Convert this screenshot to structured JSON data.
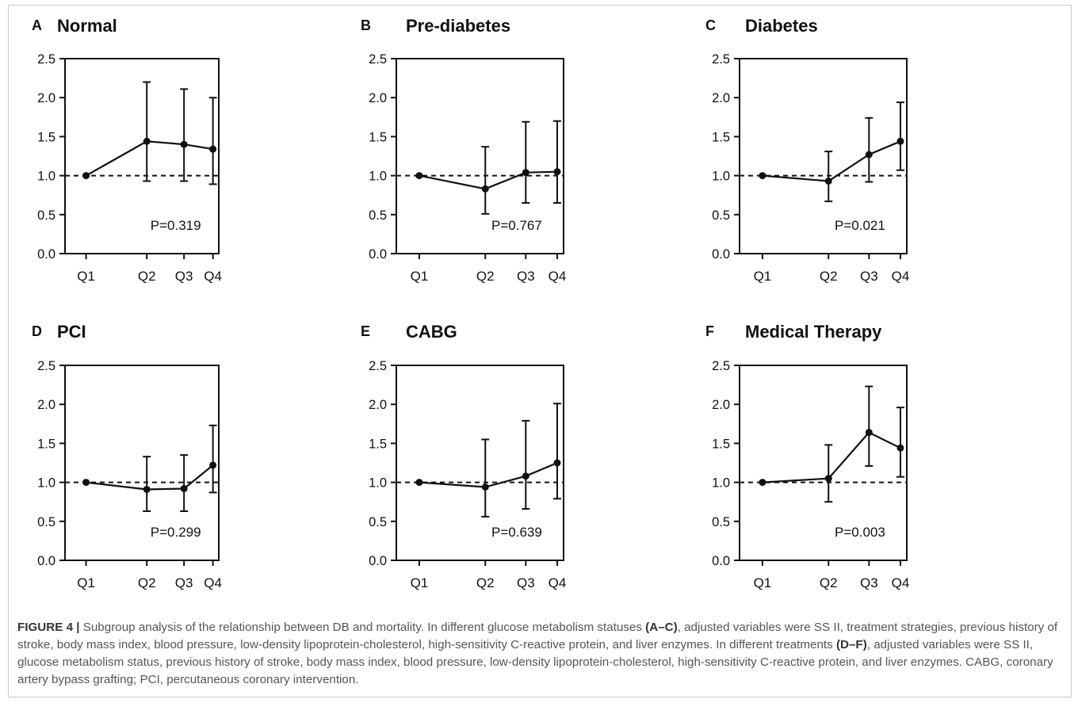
{
  "chart_data": [
    {
      "type": "line",
      "panel_letter": "A",
      "title": "Normal",
      "categories": [
        "Q1",
        "Q2",
        "Q3",
        "Q4"
      ],
      "values": [
        1.0,
        1.44,
        1.4,
        1.34
      ],
      "error_low": [
        1.0,
        0.93,
        0.93,
        0.89
      ],
      "error_high": [
        1.0,
        2.2,
        2.11,
        2.0
      ],
      "ylim": [
        0,
        2.5
      ],
      "yticks": [
        "0.0",
        "0.5",
        "1.0",
        "1.5",
        "2.0",
        "2.5"
      ],
      "reference_line": 1.0,
      "annotation": "P=0.319",
      "grid": false
    },
    {
      "type": "line",
      "panel_letter": "B",
      "title": "Pre-diabetes",
      "categories": [
        "Q1",
        "Q2",
        "Q3",
        "Q4"
      ],
      "values": [
        1.0,
        0.83,
        1.04,
        1.05
      ],
      "error_low": [
        1.0,
        0.51,
        0.65,
        0.65
      ],
      "error_high": [
        1.0,
        1.37,
        1.69,
        1.7
      ],
      "ylim": [
        0,
        2.5
      ],
      "yticks": [
        "0.0",
        "0.5",
        "1.0",
        "1.5",
        "2.0",
        "2.5"
      ],
      "reference_line": 1.0,
      "annotation": "P=0.767",
      "grid": false
    },
    {
      "type": "line",
      "panel_letter": "C",
      "title": "Diabetes",
      "categories": [
        "Q1",
        "Q2",
        "Q3",
        "Q4"
      ],
      "values": [
        1.0,
        0.93,
        1.27,
        1.44
      ],
      "error_low": [
        1.0,
        0.67,
        0.92,
        1.07
      ],
      "error_high": [
        1.0,
        1.31,
        1.74,
        1.94
      ],
      "ylim": [
        0,
        2.5
      ],
      "yticks": [
        "0.0",
        "0.5",
        "1.0",
        "1.5",
        "2.0",
        "2.5"
      ],
      "reference_line": 1.0,
      "annotation": "P=0.021",
      "grid": false
    },
    {
      "type": "line",
      "panel_letter": "D",
      "title": "PCI",
      "categories": [
        "Q1",
        "Q2",
        "Q3",
        "Q4"
      ],
      "values": [
        1.0,
        0.91,
        0.92,
        1.22
      ],
      "error_low": [
        1.0,
        0.63,
        0.63,
        0.87
      ],
      "error_high": [
        1.0,
        1.33,
        1.35,
        1.73
      ],
      "ylim": [
        0,
        2.5
      ],
      "yticks": [
        "0.0",
        "0.5",
        "1.0",
        "1.5",
        "2.0",
        "2.5"
      ],
      "reference_line": 1.0,
      "annotation": "P=0.299",
      "grid": false
    },
    {
      "type": "line",
      "panel_letter": "E",
      "title": "CABG",
      "categories": [
        "Q1",
        "Q2",
        "Q3",
        "Q4"
      ],
      "values": [
        1.0,
        0.94,
        1.08,
        1.25
      ],
      "error_low": [
        1.0,
        0.56,
        0.66,
        0.79
      ],
      "error_high": [
        1.0,
        1.55,
        1.79,
        2.01
      ],
      "ylim": [
        0,
        2.5
      ],
      "yticks": [
        "0.0",
        "0.5",
        "1.0",
        "1.5",
        "2.0",
        "2.5"
      ],
      "reference_line": 1.0,
      "annotation": "P=0.639",
      "grid": false
    },
    {
      "type": "line",
      "panel_letter": "F",
      "title": "Medical Therapy",
      "categories": [
        "Q1",
        "Q2",
        "Q3",
        "Q4"
      ],
      "values": [
        1.0,
        1.05,
        1.64,
        1.44
      ],
      "error_low": [
        1.0,
        0.75,
        1.21,
        1.07
      ],
      "error_high": [
        1.0,
        1.48,
        2.23,
        1.96
      ],
      "ylim": [
        0,
        2.5
      ],
      "yticks": [
        "0.0",
        "0.5",
        "1.0",
        "1.5",
        "2.0",
        "2.5"
      ],
      "reference_line": 1.0,
      "annotation": "P=0.003",
      "grid": false
    }
  ],
  "caption": {
    "label": "FIGURE 4 |",
    "part1": " Subgroup analysis of the relationship between DB and mortality. In different glucose metabolism statuses ",
    "ref1": "(A–C)",
    "part2": ", adjusted variables were SS II, treatment strategies, previous history of stroke, body mass index, blood pressure, low-density lipoprotein-cholesterol, high-sensitivity C-reactive protein, and liver enzymes. In different treatments ",
    "ref2": "(D–F)",
    "part3": ", adjusted variables were SS II, glucose metabolism status, previous history of stroke, body mass index, blood pressure, low-density lipoprotein-cholesterol, high-sensitivity C-reactive protein, and liver enzymes. CABG, coronary artery bypass grafting; PCI, percutaneous coronary intervention."
  }
}
